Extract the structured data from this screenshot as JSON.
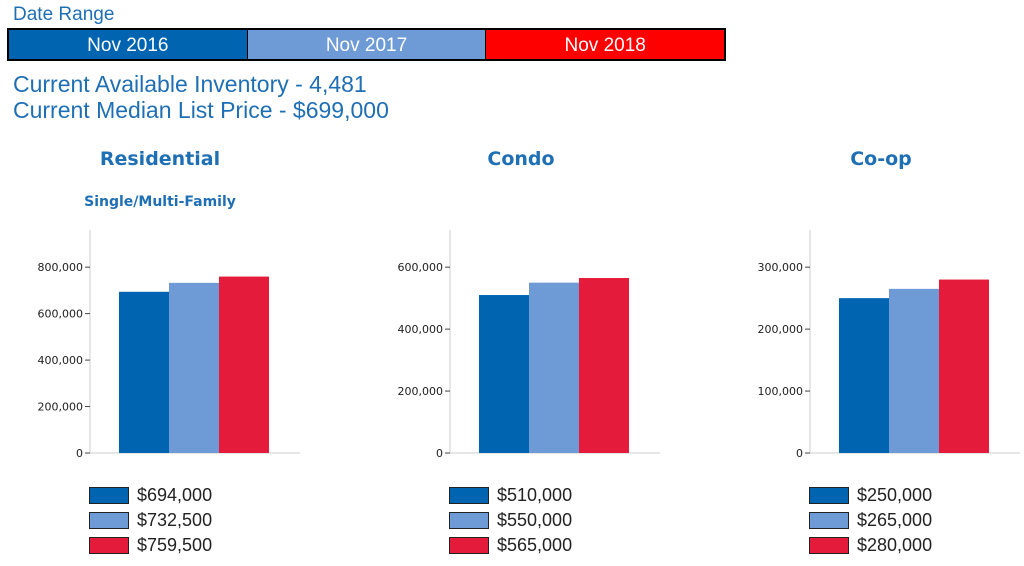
{
  "date_range": {
    "label": "Date Range",
    "periods": [
      {
        "label": "Nov 2016",
        "color": "#0064b0"
      },
      {
        "label": "Nov 2017",
        "color": "#6e9bd5"
      },
      {
        "label": "Nov 2018",
        "color": "#ff0000"
      }
    ]
  },
  "info": {
    "inventory": "Current Available Inventory - 4,481",
    "median": "Current Median List Price - $699,000"
  },
  "series_colors": [
    "#0064b0",
    "#6e9bd5",
    "#e41b3a"
  ],
  "chart_data": [
    {
      "type": "bar",
      "title": "Residential",
      "subtitle": "Single/Multi-Family",
      "ylim": [
        0,
        960000
      ],
      "yticks": [
        0,
        200000,
        400000,
        600000,
        800000
      ],
      "ytick_labels": [
        "0",
        "200,000",
        "400,000",
        "600,000",
        "800,000"
      ],
      "values": [
        694000,
        732500,
        759500
      ],
      "legend": [
        "$694,000",
        "$732,500",
        "$759,500"
      ]
    },
    {
      "type": "bar",
      "title": "Condo",
      "subtitle": "",
      "ylim": [
        0,
        720000
      ],
      "yticks": [
        0,
        200000,
        400000,
        600000
      ],
      "ytick_labels": [
        "0",
        "200,000",
        "400,000",
        "600,000"
      ],
      "values": [
        510000,
        550000,
        565000
      ],
      "legend": [
        "$510,000",
        "$550,000",
        "$565,000"
      ]
    },
    {
      "type": "bar",
      "title": "Co-op",
      "subtitle": "",
      "ylim": [
        0,
        360000
      ],
      "yticks": [
        0,
        100000,
        200000,
        300000
      ],
      "ytick_labels": [
        "0",
        "100,000",
        "200,000",
        "300,000"
      ],
      "values": [
        250000,
        265000,
        280000
      ],
      "legend": [
        "$250,000",
        "$265,000",
        "$280,000"
      ]
    }
  ]
}
